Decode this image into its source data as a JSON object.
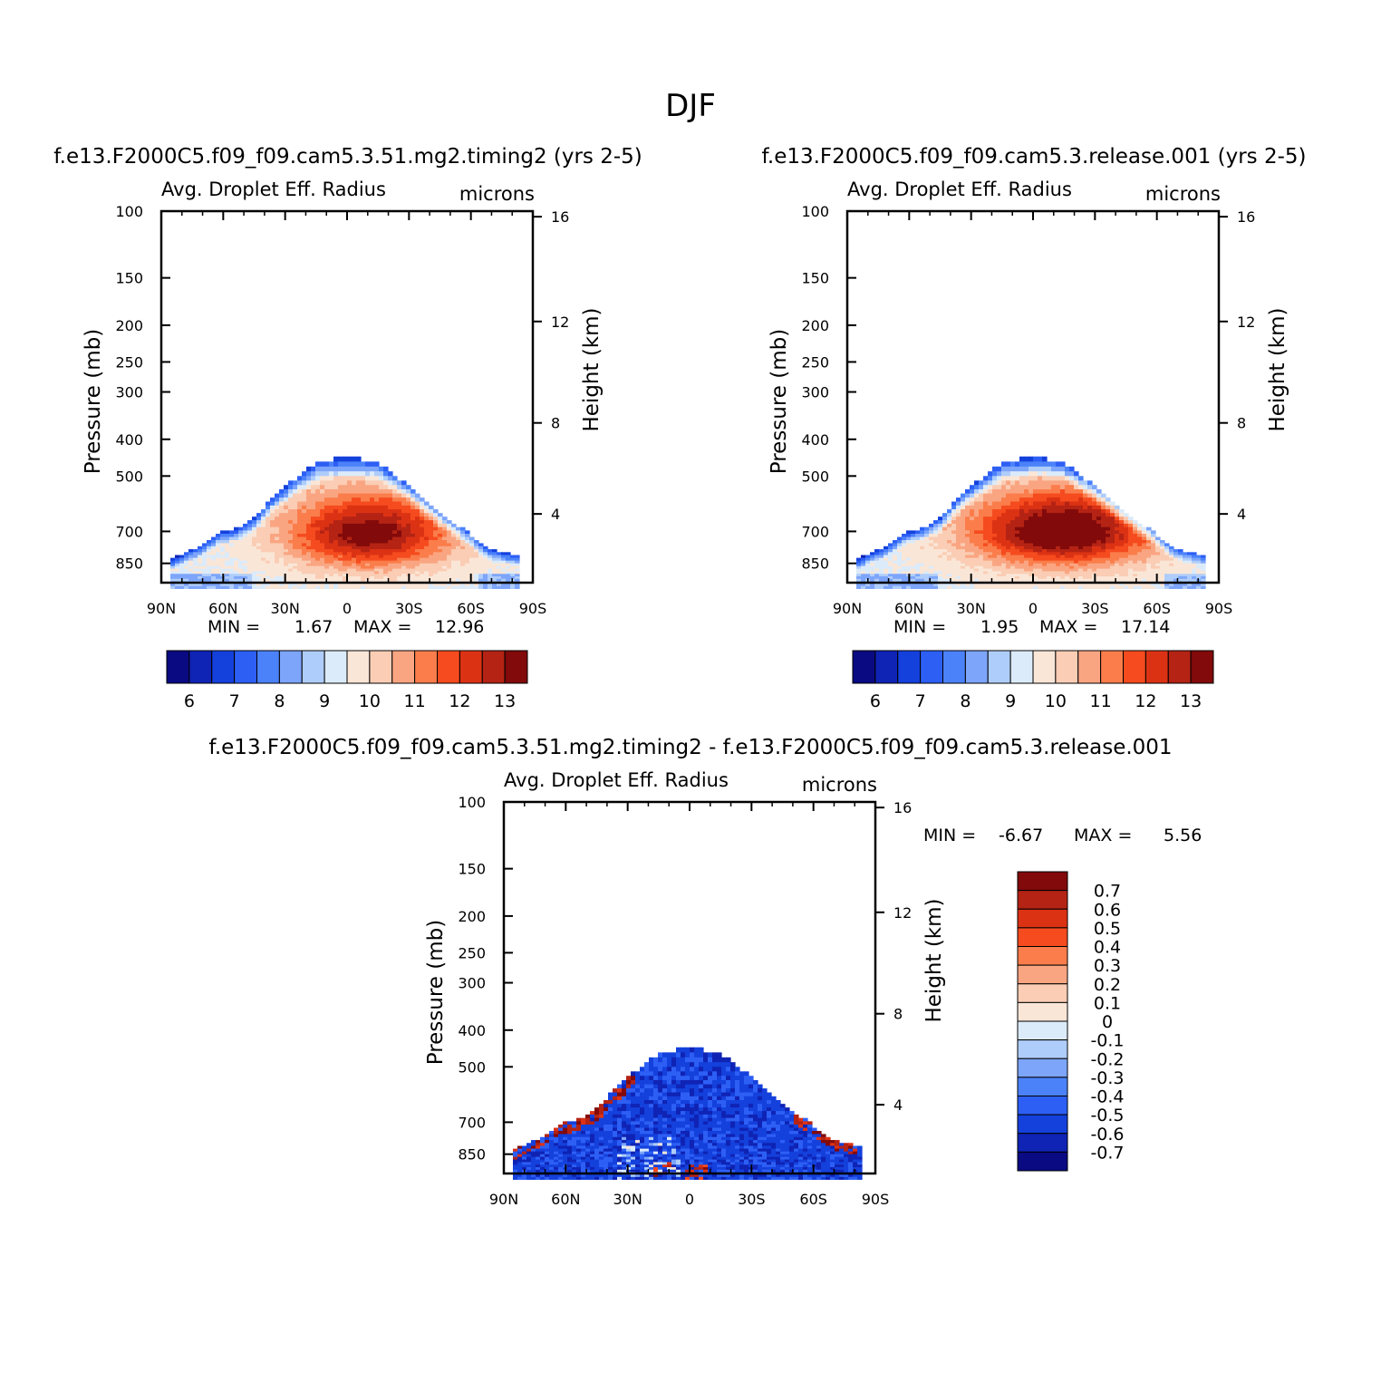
{
  "figure": {
    "title": "DJF"
  },
  "colors": {
    "abs_palette": [
      "#0a0a82",
      "#0f23b4",
      "#1440dc",
      "#2d5ff5",
      "#4b82fa",
      "#7da5fa",
      "#afcdfa",
      "#dcebfa",
      "#fae6d7",
      "#facdb4",
      "#faa582",
      "#fa7d4b",
      "#f54b1e",
      "#dc3214",
      "#b42314",
      "#820a0a"
    ],
    "diff_palette": [
      "#0a0a82",
      "#0f23b4",
      "#1440dc",
      "#2d5ff5",
      "#4b82fa",
      "#7da5fa",
      "#afcdfa",
      "#dcebfa",
      "#fae6d7",
      "#facdb4",
      "#faa582",
      "#fa7d4b",
      "#f54b1e",
      "#dc3214",
      "#b42314",
      "#820a0a"
    ]
  },
  "panels": [
    {
      "id": "panel1",
      "title": "f.e13.F2000C5.f09_f09.cam5.3.51.mg2.timing2 (yrs 2-5)",
      "left_label": "Avg. Droplet Eff. Radius",
      "right_label": "microns",
      "min_label": "MIN =",
      "min_value": "1.67",
      "max_label": "MAX =",
      "max_value": "12.96"
    },
    {
      "id": "panel2",
      "title": "f.e13.F2000C5.f09_f09.cam5.3.release.001 (yrs 2-5)",
      "left_label": "Avg. Droplet Eff. Radius",
      "right_label": "microns",
      "min_label": "MIN =",
      "min_value": "1.95",
      "max_label": "MAX =",
      "max_value": "17.14"
    },
    {
      "id": "panel3",
      "title": "f.e13.F2000C5.f09_f09.cam5.3.51.mg2.timing2 - f.e13.F2000C5.f09_f09.cam5.3.release.001",
      "left_label": "Avg. Droplet Eff. Radius",
      "right_label": "microns",
      "min_label": "MIN =",
      "min_value": "-6.67",
      "max_label": "MAX =",
      "max_value": "5.56"
    }
  ],
  "chart_data": [
    {
      "type": "heatmap",
      "title": "f.e13.F2000C5.f09_f09.cam5.3.51.mg2.timing2 (yrs 2-5)",
      "xlabel": "",
      "ylabel": "Pressure (mb)",
      "y2label": "Height (km)",
      "x_ticks": [
        "90N",
        "60N",
        "30N",
        "0",
        "30S",
        "60S",
        "90S"
      ],
      "y_ticks": [
        "100",
        "150",
        "200",
        "250",
        "300",
        "400",
        "500",
        "700",
        "850"
      ],
      "y2_ticks": [
        "16",
        "12",
        "8",
        "4"
      ],
      "colorbar_labels": [
        "6",
        "7",
        "8",
        "9",
        "10",
        "11",
        "12",
        "13"
      ],
      "min": 1.67,
      "max": 12.96
    },
    {
      "type": "heatmap",
      "title": "f.e13.F2000C5.f09_f09.cam5.3.release.001 (yrs 2-5)",
      "xlabel": "",
      "ylabel": "Pressure (mb)",
      "y2label": "Height (km)",
      "x_ticks": [
        "90N",
        "60N",
        "30N",
        "0",
        "30S",
        "60S",
        "90S"
      ],
      "y_ticks": [
        "100",
        "150",
        "200",
        "250",
        "300",
        "400",
        "500",
        "700",
        "850"
      ],
      "y2_ticks": [
        "16",
        "12",
        "8",
        "4"
      ],
      "colorbar_labels": [
        "6",
        "7",
        "8",
        "9",
        "10",
        "11",
        "12",
        "13"
      ],
      "min": 1.95,
      "max": 17.14
    },
    {
      "type": "heatmap",
      "title": "f.e13.F2000C5.f09_f09.cam5.3.51.mg2.timing2 - f.e13.F2000C5.f09_f09.cam5.3.release.001",
      "xlabel": "",
      "ylabel": "Pressure (mb)",
      "y2label": "Height (km)",
      "x_ticks": [
        "90N",
        "60N",
        "30N",
        "0",
        "30S",
        "60S",
        "90S"
      ],
      "y_ticks": [
        "100",
        "150",
        "200",
        "250",
        "300",
        "400",
        "500",
        "700",
        "850"
      ],
      "y2_ticks": [
        "16",
        "12",
        "8",
        "4"
      ],
      "colorbar_labels": [
        "0.7",
        "0.6",
        "0.5",
        "0.4",
        "0.3",
        "0.2",
        "0.1",
        "0",
        "-0.1",
        "-0.2",
        "-0.3",
        "-0.4",
        "-0.5",
        "-0.6",
        "-0.7"
      ],
      "min": -6.67,
      "max": 5.56
    }
  ]
}
